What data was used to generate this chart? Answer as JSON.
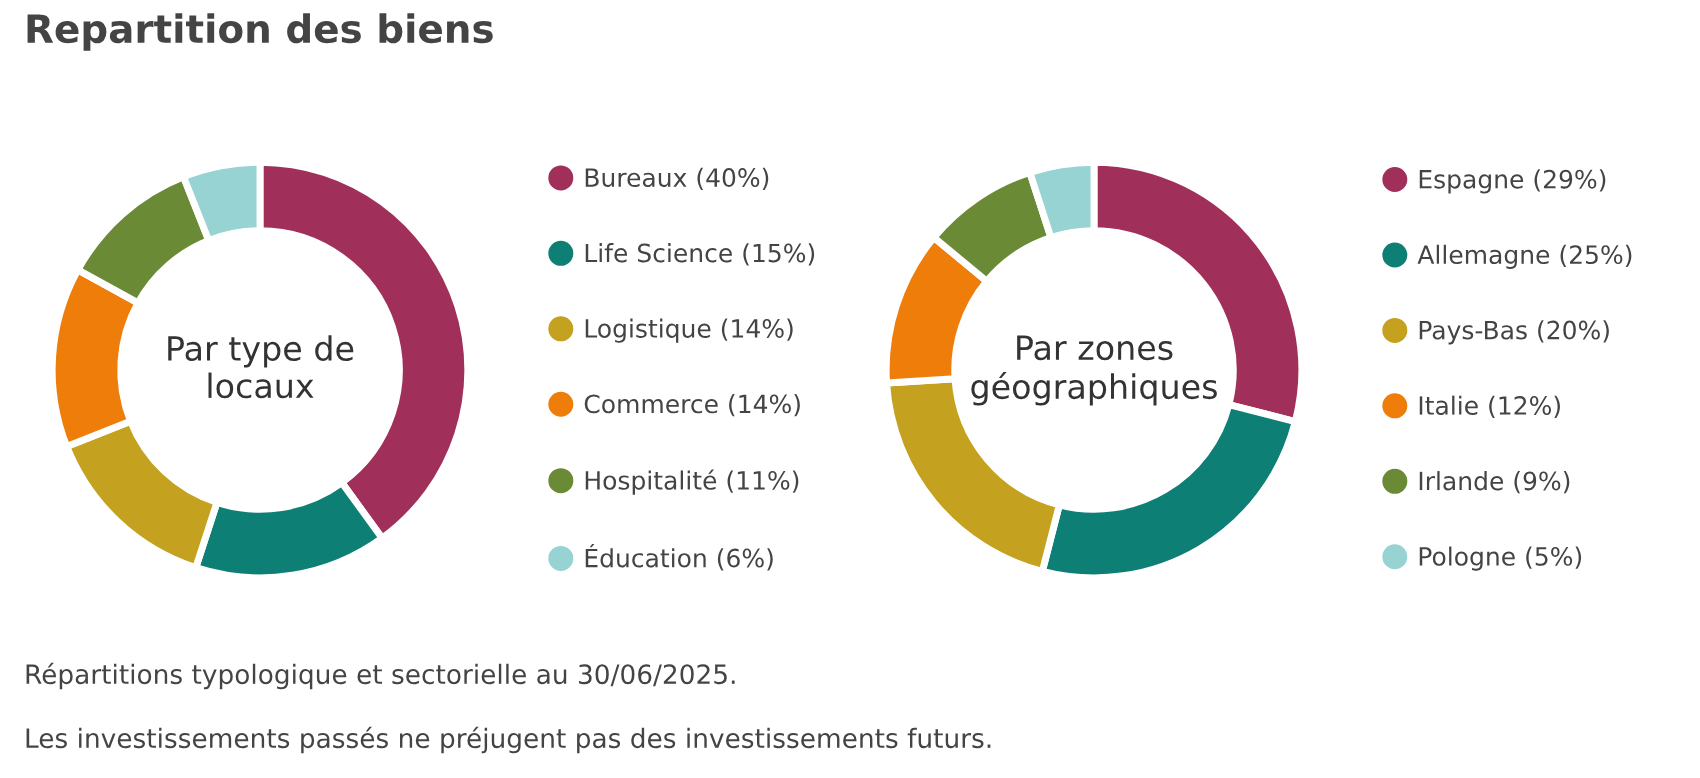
{
  "chart_data": [
    {
      "type": "donut",
      "title": "Par type de\nlocaux",
      "legend": "right",
      "categories": [
        "Bureaux (40%)",
        "Life Science (15%)",
        "Logistique (14%)",
        "Commerce (14%)",
        "Hospitalité (11%)",
        "Éducation (6%)"
      ],
      "values": [
        40,
        15,
        14,
        14,
        11,
        6
      ],
      "colors": [
        "#a0305a",
        "#0e7f74",
        "#c4a11f",
        "#ee7d0a",
        "#6b8a35",
        "#96d3d2"
      ]
    },
    {
      "type": "donut",
      "title": "Par zones\ngéographiques",
      "legend": "right",
      "categories": [
        "Espagne (29%)",
        "Allemagne (25%)",
        "Pays-Bas (20%)",
        "Italie (12%)",
        "Irlande (9%)",
        "Pologne (5%)"
      ],
      "values": [
        29,
        25,
        20,
        12,
        9,
        5
      ],
      "colors": [
        "#a0305a",
        "#0e7f74",
        "#c4a11f",
        "#ee7d0a",
        "#6b8a35",
        "#96d3d2"
      ]
    },
    {
      "type": "other",
      "title": "Repartition des biens",
      "annotations": [
        "Répartitions typologique et sectorielle au 30/06/2025.",
        "Les investissements passés ne préjugent pas des investissements futurs."
      ]
    }
  ]
}
